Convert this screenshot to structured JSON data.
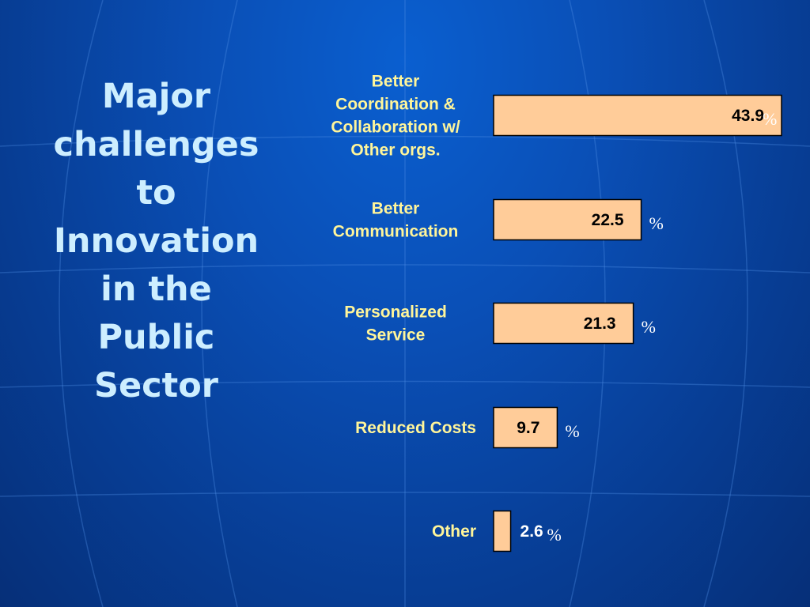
{
  "title_lines": [
    "Major",
    "challenges",
    "to",
    "Innovation",
    "in the",
    "Public",
    "Sector"
  ],
  "colors": {
    "bar_fill": "#ffcc99",
    "bar_stroke": "#000000",
    "category_text": "#fff59a",
    "title_text": "#cdeeff"
  },
  "chart_data": {
    "type": "bar",
    "orientation": "horizontal",
    "categories": [
      [
        "Better",
        "Coordination &",
        "Collaboration w/",
        "Other orgs."
      ],
      [
        "Better",
        "Communication"
      ],
      [
        "Personalized",
        "Service"
      ],
      [
        "Reduced Costs"
      ],
      [
        "Other"
      ]
    ],
    "values": [
      43.9,
      22.5,
      21.3,
      9.7,
      2.6
    ],
    "value_labels": [
      "43.9",
      "22.5",
      "21.3",
      "9.7",
      "2.6"
    ],
    "unit_labels": [
      "%",
      "%",
      "%",
      "%",
      "%"
    ],
    "xlim": [
      0,
      43.9
    ],
    "grid": false,
    "legend": "none"
  }
}
